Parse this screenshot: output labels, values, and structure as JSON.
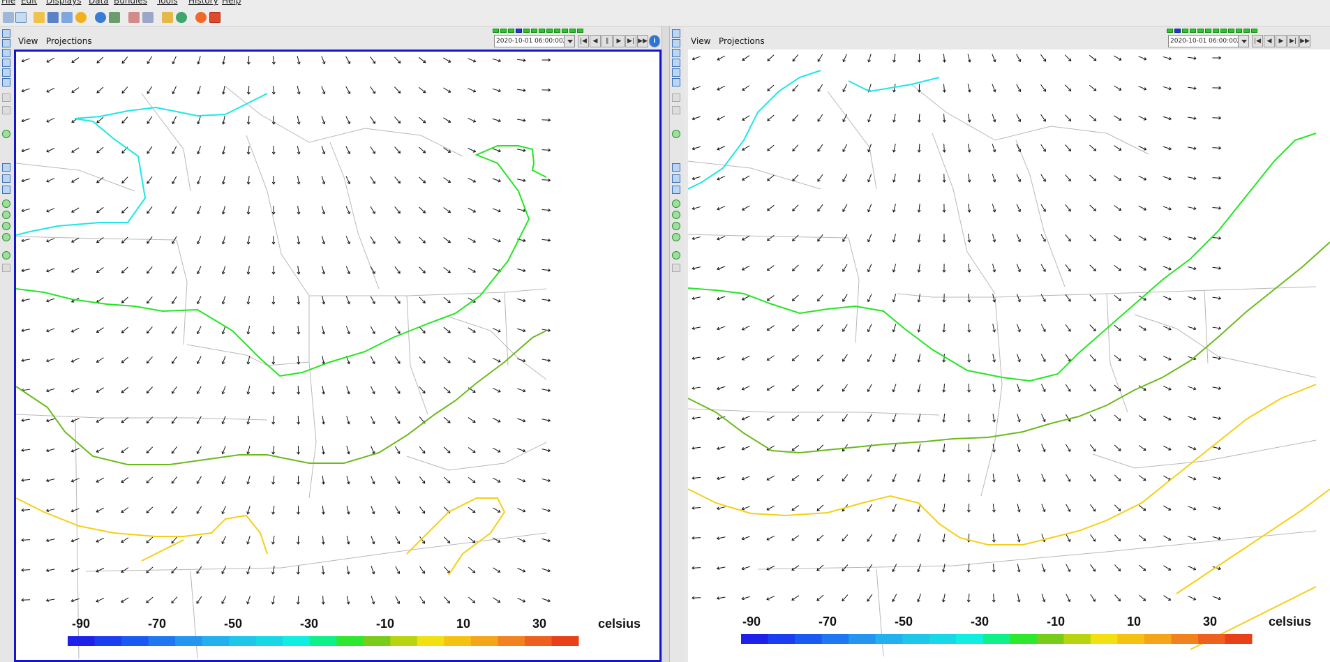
{
  "menu": [
    "File",
    "Edit",
    "Displays",
    "Data",
    "Bundles",
    "Tools",
    "History",
    "Help"
  ],
  "panels": [
    {
      "menu": [
        "View",
        "Projections"
      ],
      "time": "2020-10-01 06:00:00Z",
      "selected": true,
      "colorbar_labels": [
        "-90",
        "-70",
        "-50",
        "-30",
        "-10",
        "10",
        "30"
      ],
      "units": "celsius"
    },
    {
      "menu": [
        "View",
        "Projections"
      ],
      "time": "2020-10-01 06:00:00Z",
      "selected": false,
      "colorbar_labels": [
        "-90",
        "-70",
        "-50",
        "-30",
        "-10",
        "10",
        "30"
      ],
      "units": "celsius"
    }
  ],
  "colors": {
    "cyan_contour": "#1ee6e6",
    "green_contour": "#22e622",
    "olive_contour": "#6aba1a",
    "yellow_contour": "#f5cf14",
    "selected_border": "#1515d0"
  }
}
